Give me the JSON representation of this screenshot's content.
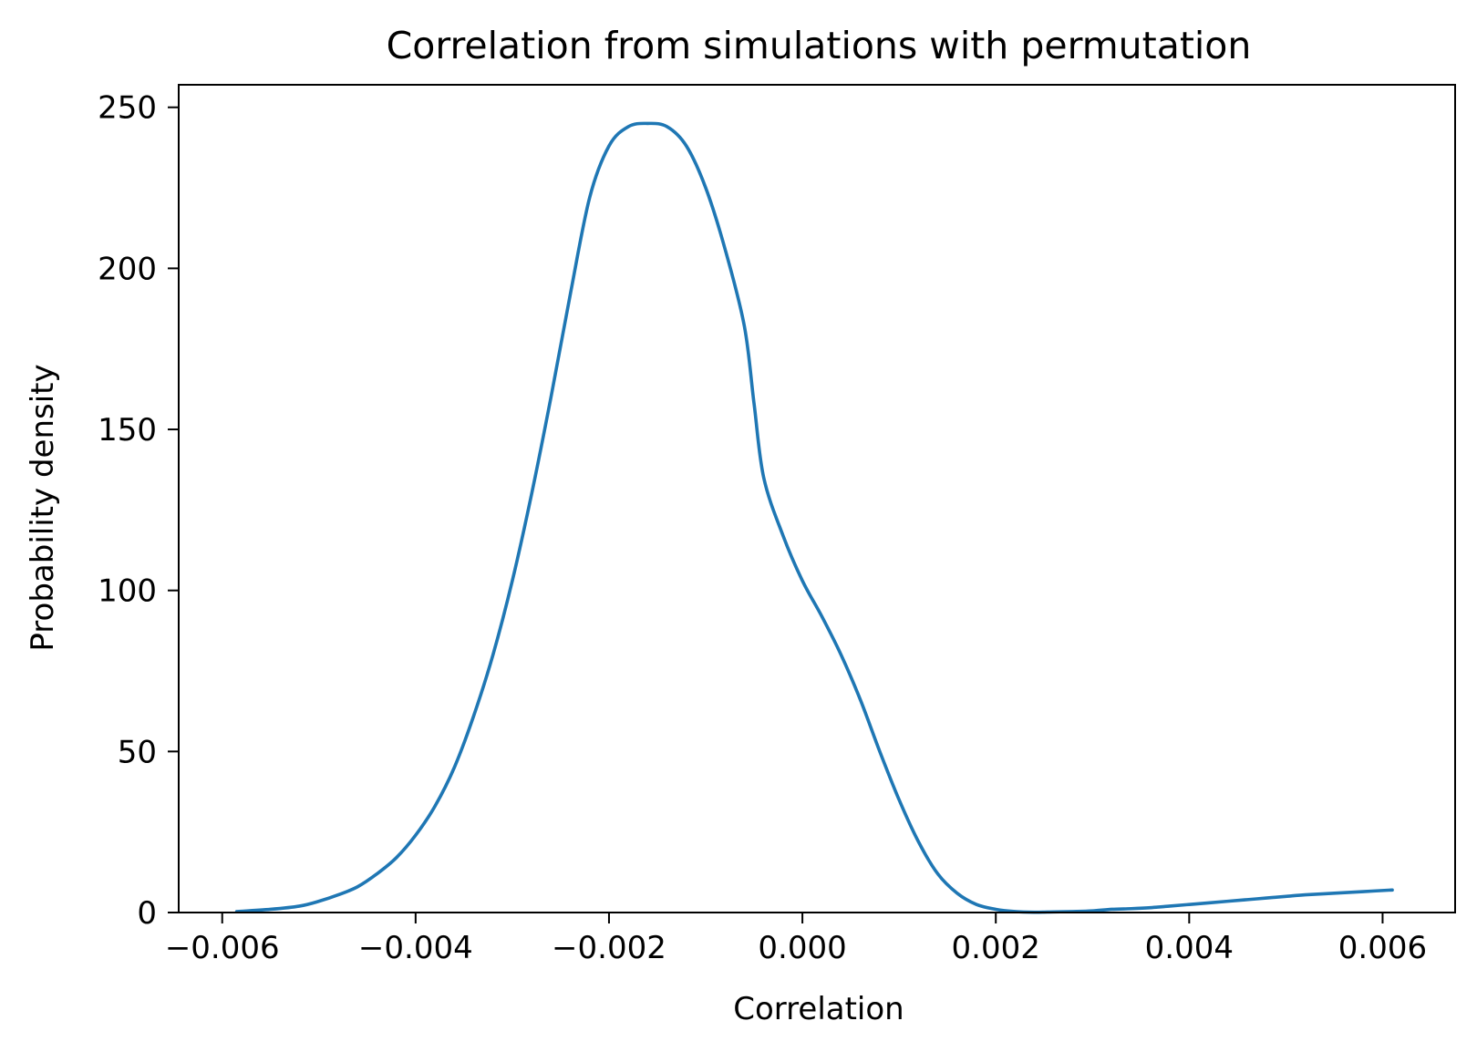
{
  "chart_data": {
    "type": "line",
    "title": "Correlation from simulations with permutation",
    "xlabel": "Correlation",
    "ylabel": "Probability density",
    "xlim": [
      -0.00645,
      0.00675
    ],
    "ylim": [
      0,
      257
    ],
    "xticks": [
      -0.006,
      -0.004,
      -0.002,
      0.0,
      0.002,
      0.004,
      0.006
    ],
    "xtick_labels": [
      "−0.006",
      "−0.004",
      "−0.002",
      "0.000",
      "0.002",
      "0.004",
      "0.006"
    ],
    "yticks": [
      0,
      50,
      100,
      150,
      200,
      250
    ],
    "ytick_labels": [
      "0",
      "50",
      "100",
      "150",
      "200",
      "250"
    ],
    "grid": false,
    "legend": "none",
    "color": "#1f77b4",
    "series": [
      {
        "x": [
          -0.00585,
          -0.0055,
          -0.0052,
          -0.005,
          -0.0048,
          -0.0046,
          -0.0044,
          -0.0042,
          -0.004,
          -0.0038,
          -0.0036,
          -0.0034,
          -0.0032,
          -0.003,
          -0.0028,
          -0.0026,
          -0.0024,
          -0.0022,
          -0.002,
          -0.0018,
          -0.0016,
          -0.0014,
          -0.0012,
          -0.001,
          -0.0008,
          -0.0006,
          -0.0005,
          -0.0004,
          -0.0002,
          0.0,
          0.0002,
          0.0004,
          0.0006,
          0.0008,
          0.001,
          0.0012,
          0.0014,
          0.0016,
          0.0018,
          0.002,
          0.0022,
          0.0024,
          0.0026,
          0.0028,
          0.003,
          0.0032,
          0.0034,
          0.0036,
          0.0038,
          0.004,
          0.0042,
          0.0044,
          0.0046,
          0.0048,
          0.005,
          0.0052,
          0.0055,
          0.0058,
          0.0061
        ],
        "y": [
          0.3,
          1,
          2,
          3.5,
          5.5,
          8,
          12,
          17,
          24,
          33,
          45,
          61,
          80,
          103,
          130,
          160,
          192,
          222,
          238,
          244,
          245,
          244,
          238,
          225,
          206,
          182,
          158,
          135,
          117,
          103,
          92,
          80,
          66,
          50,
          35,
          22,
          12,
          6,
          2.5,
          1,
          0.3,
          0.1,
          0.2,
          0.3,
          0.5,
          1,
          1.2,
          1.5,
          2,
          2.5,
          3,
          3.5,
          4,
          4.5,
          5,
          5.5,
          6,
          6.5,
          7
        ]
      }
    ]
  }
}
